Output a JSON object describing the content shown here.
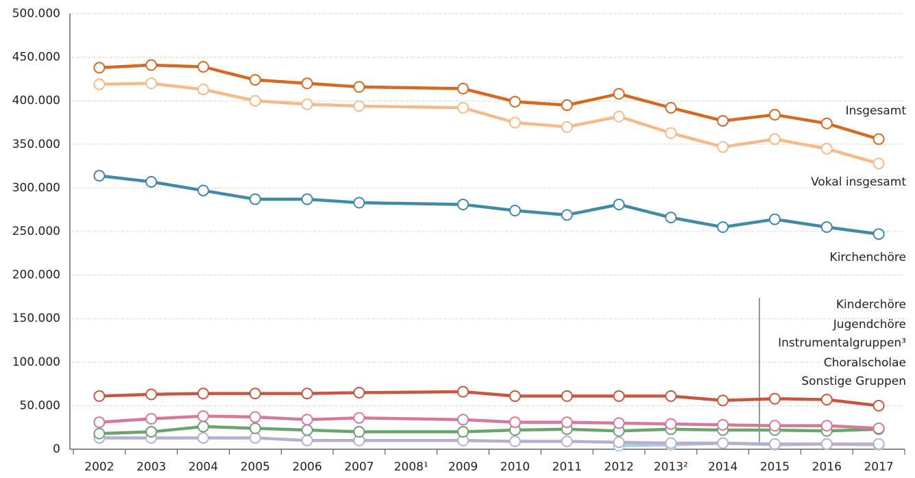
{
  "chart_data": {
    "type": "line",
    "categories": [
      "2002",
      "2003",
      "2004",
      "2005",
      "2006",
      "2007",
      "2008¹",
      "2009",
      "2010",
      "2011",
      "2012",
      "2013²",
      "2014",
      "2015",
      "2016",
      "2017"
    ],
    "series": [
      {
        "name": "Insgesamt",
        "color": "#d4691f",
        "values": [
          438000,
          441000,
          439000,
          424000,
          420000,
          416000,
          null,
          414000,
          399000,
          395000,
          408000,
          392000,
          377000,
          384000,
          374000,
          356000
        ]
      },
      {
        "name": "Vokal insgesamt",
        "color": "#f5b98a",
        "values": [
          419000,
          420000,
          413000,
          400000,
          396000,
          394000,
          null,
          392000,
          375000,
          370000,
          382000,
          363000,
          347000,
          356000,
          345000,
          328000
        ]
      },
      {
        "name": "Kirchenchöre",
        "color": "#3f8aa6",
        "values": [
          314000,
          307000,
          297000,
          287000,
          287000,
          283000,
          null,
          281000,
          274000,
          269000,
          281000,
          266000,
          255000,
          264000,
          255000,
          247000
        ]
      },
      {
        "name": "Kinderchöre",
        "color": "#c8553d",
        "values": [
          61000,
          63000,
          64000,
          64000,
          64000,
          65000,
          null,
          66000,
          61000,
          61000,
          61000,
          61000,
          56000,
          58000,
          57000,
          50000
        ]
      },
      {
        "name": "Jugendchöre",
        "color": "#d47a96",
        "values": [
          31000,
          35000,
          38000,
          37000,
          34000,
          36000,
          null,
          34000,
          31000,
          31000,
          30000,
          29000,
          28000,
          27000,
          27000,
          24000
        ]
      },
      {
        "name": "Instrumentalgruppen³",
        "color": "#6aa56e",
        "values": [
          18000,
          20000,
          26000,
          24000,
          22000,
          20000,
          null,
          20000,
          22000,
          23000,
          21000,
          23000,
          22000,
          22000,
          21000,
          23000
        ]
      },
      {
        "name": "Choralscholae",
        "color": "#b5b0d0",
        "values": [
          13000,
          13000,
          13000,
          13000,
          10000,
          10000,
          null,
          10000,
          9000,
          9000,
          8000,
          7000,
          7000,
          6000,
          6000,
          6000
        ]
      },
      {
        "name": "Sonstige Gruppen",
        "color": "#a9cfe0",
        "values": [
          null,
          null,
          null,
          null,
          null,
          null,
          null,
          null,
          null,
          null,
          4000,
          5000,
          7000,
          5000,
          6000,
          5000
        ]
      }
    ],
    "ylim": [
      0,
      500000
    ],
    "yticks": [
      0,
      {
        "value": 50000,
        "label": "50.000"
      },
      {
        "value": 100000,
        "label": "100.000"
      },
      {
        "value": 150000,
        "label": "150.000"
      },
      {
        "value": 200000,
        "label": "200.000"
      },
      {
        "value": 250000,
        "label": "250.000"
      },
      {
        "value": 300000,
        "label": "300.000"
      },
      {
        "value": 350000,
        "label": "350.000"
      },
      {
        "value": 400000,
        "label": "400.000"
      },
      {
        "value": 450000,
        "label": "450.000"
      },
      {
        "value": 500000,
        "label": "500.000"
      }
    ],
    "grid": true,
    "span_gaps": true
  }
}
